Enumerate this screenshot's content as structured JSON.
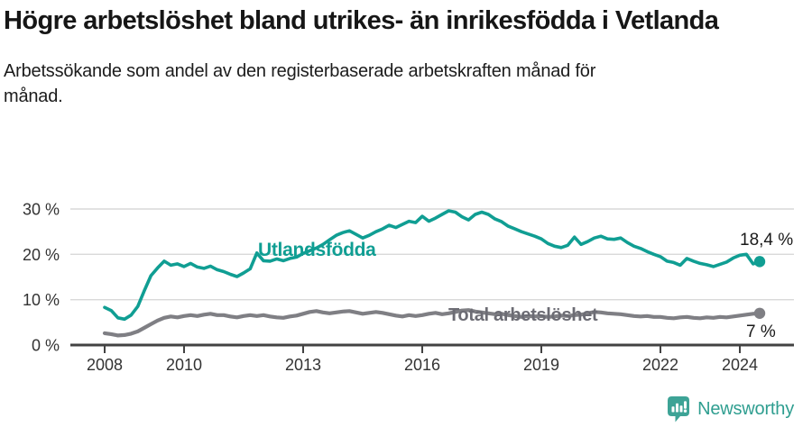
{
  "header": {
    "title": "Högre arbetslöshet bland utrikes- än inrikesfödda i Vetlanda",
    "subtitle": "Arbetssökande som andel av den registerbaserade arbetskraften månad för månad."
  },
  "chart_data": {
    "type": "line",
    "title": "Högre arbetslöshet bland utrikes- än inrikesfödda i Vetlanda",
    "subtitle": "Arbetssökande som andel av den registerbaserade arbetskraften månad för månad.",
    "grid": "horizontal-only",
    "legend_position": "inline-labels-on-lines",
    "x_axis": {
      "unit": "year",
      "range": [
        2008,
        2024.6
      ],
      "ticks": [
        {
          "value": 2008,
          "label": "2008"
        },
        {
          "value": 2010,
          "label": "2010"
        },
        {
          "value": 2013,
          "label": "2013"
        },
        {
          "value": 2016,
          "label": "2016"
        },
        {
          "value": 2019,
          "label": "2019"
        },
        {
          "value": 2022,
          "label": "2022"
        },
        {
          "value": 2024,
          "label": "2024"
        }
      ]
    },
    "y_axis": {
      "unit": "percent",
      "range": [
        0,
        30
      ],
      "ticks": [
        {
          "value": 0,
          "label": "0 %"
        },
        {
          "value": 10,
          "label": "10 %"
        },
        {
          "value": 20,
          "label": "20 %"
        },
        {
          "value": 30,
          "label": "30 %"
        }
      ]
    },
    "x_start": 2008.0,
    "x_step": 0.16667,
    "series": [
      {
        "name": "Utlandsfödda",
        "color": "#109E93",
        "end_label": "18,4 %",
        "end_value": 18.4,
        "values": [
          8.3,
          7.6,
          6.0,
          5.7,
          6.6,
          8.5,
          12.0,
          15.3,
          17.0,
          18.5,
          17.6,
          17.9,
          17.3,
          18.0,
          17.2,
          16.9,
          17.4,
          16.6,
          16.2,
          15.6,
          15.1,
          15.9,
          16.8,
          20.3,
          18.6,
          18.5,
          19.0,
          18.6,
          19.1,
          19.4,
          20.2,
          20.8,
          21.4,
          22.2,
          23.2,
          24.2,
          24.8,
          25.2,
          24.4,
          23.6,
          24.2,
          25.0,
          25.6,
          26.4,
          25.9,
          26.6,
          27.3,
          27.0,
          28.4,
          27.3,
          28.0,
          28.8,
          29.6,
          29.3,
          28.3,
          27.6,
          28.8,
          29.3,
          28.8,
          27.8,
          27.2,
          26.2,
          25.6,
          25.0,
          24.5,
          24.0,
          23.4,
          22.4,
          21.8,
          21.5,
          22.0,
          23.8,
          22.2,
          22.8,
          23.6,
          24.0,
          23.4,
          23.3,
          23.6,
          22.6,
          21.8,
          21.3,
          20.6,
          20.0,
          19.5,
          18.5,
          18.2,
          17.6,
          19.1,
          18.5,
          18.0,
          17.7,
          17.3,
          17.8,
          18.3,
          19.2,
          19.8,
          20.0,
          17.9,
          18.4
        ]
      },
      {
        "name": "Total arbetslöshet",
        "color": "#7F7F84",
        "end_label": "7 %",
        "end_value": 7.0,
        "values": [
          2.6,
          2.4,
          2.1,
          2.2,
          2.5,
          3.0,
          3.8,
          4.6,
          5.4,
          6.0,
          6.3,
          6.1,
          6.4,
          6.6,
          6.4,
          6.7,
          6.9,
          6.6,
          6.6,
          6.3,
          6.1,
          6.4,
          6.6,
          6.4,
          6.6,
          6.3,
          6.1,
          6.0,
          6.3,
          6.5,
          6.9,
          7.3,
          7.5,
          7.2,
          7.0,
          7.2,
          7.4,
          7.5,
          7.2,
          6.9,
          7.1,
          7.3,
          7.1,
          6.8,
          6.5,
          6.3,
          6.6,
          6.4,
          6.6,
          6.9,
          7.1,
          6.8,
          7.0,
          7.3,
          7.6,
          7.7,
          7.4,
          7.2,
          7.0,
          6.8,
          6.9,
          6.6,
          6.4,
          6.2,
          6.4,
          6.3,
          6.4,
          6.2,
          6.3,
          6.5,
          6.4,
          6.6,
          6.7,
          7.0,
          7.3,
          7.2,
          7.0,
          6.9,
          6.8,
          6.6,
          6.4,
          6.3,
          6.4,
          6.2,
          6.2,
          6.0,
          5.9,
          6.1,
          6.2,
          6.0,
          5.9,
          6.1,
          6.0,
          6.2,
          6.1,
          6.3,
          6.5,
          6.7,
          6.9,
          7.0
        ]
      }
    ],
    "colors": {
      "accent_teal": "#109E93",
      "series_gray": "#7F7F84",
      "axis": "#424242",
      "gridline": "#d9d9d9",
      "text_dark": "#1a1a1a"
    }
  },
  "branding": {
    "logo_text": "Newsworthy",
    "logo_icon": "newsworthy-chart-bubble-icon",
    "logo_color": "#3DA396"
  }
}
